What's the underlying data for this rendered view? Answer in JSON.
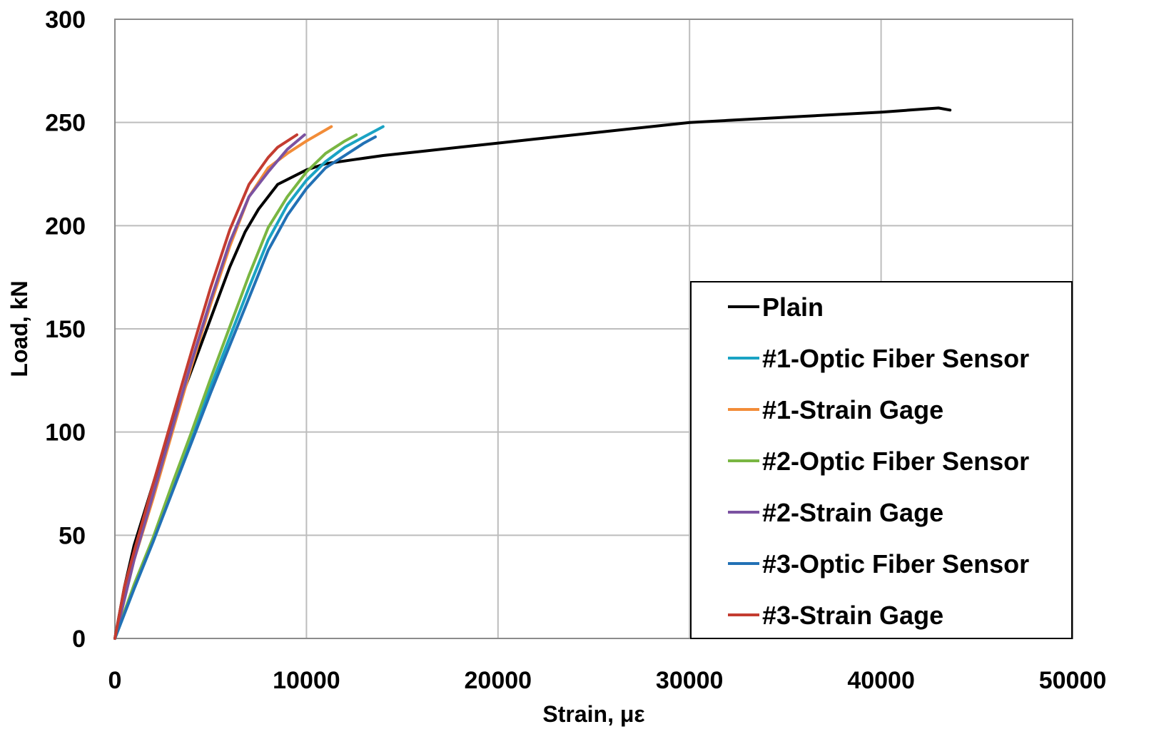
{
  "chart_data": {
    "type": "line",
    "title": "",
    "xlabel": "Strain, με",
    "ylabel": "Load, kN",
    "xlim": [
      0,
      50000
    ],
    "ylim": [
      0,
      300
    ],
    "xticks": [
      0,
      10000,
      20000,
      30000,
      40000,
      50000
    ],
    "yticks": [
      0,
      50,
      100,
      150,
      200,
      250,
      300
    ],
    "xtick_labels": [
      "0",
      "10000",
      "20000",
      "30000",
      "40000",
      "50000"
    ],
    "ytick_labels": [
      "0",
      "50",
      "100",
      "150",
      "200",
      "250",
      "300"
    ],
    "grid": true,
    "legend_position": "lower-right",
    "series": [
      {
        "name": "Plain",
        "color": "#000000",
        "x": [
          0,
          500,
          1000,
          2000,
          3000,
          4000,
          5000,
          6000,
          6800,
          7500,
          8500,
          10000,
          11000,
          12500,
          14000,
          16000,
          18000,
          20000,
          22000,
          24000,
          26000,
          28000,
          30000,
          32000,
          34000,
          36000,
          38000,
          40000,
          41500,
          43000,
          43600
        ],
        "y": [
          0,
          25,
          45,
          75,
          105,
          130,
          155,
          180,
          197,
          208,
          220,
          227,
          230,
          232,
          234,
          236,
          238,
          240,
          242,
          244,
          246,
          248,
          250,
          251,
          252,
          253,
          254,
          255,
          256,
          257,
          256
        ]
      },
      {
        "name": "#1-Optic Fiber Sensor",
        "color": "#1aa3c4",
        "x": [
          0,
          1000,
          2000,
          3000,
          4000,
          5000,
          6000,
          7000,
          8000,
          9000,
          10000,
          11000,
          12000,
          13000,
          14000
        ],
        "y": [
          0,
          24,
          47,
          72,
          97,
          122,
          146,
          170,
          193,
          210,
          222,
          231,
          238,
          243,
          248
        ]
      },
      {
        "name": "#1-Strain Gage",
        "color": "#f28c38",
        "x": [
          0,
          1000,
          2000,
          3000,
          4000,
          5000,
          6000,
          7000,
          8000,
          9000,
          10000,
          11300
        ],
        "y": [
          0,
          38,
          68,
          100,
          132,
          162,
          190,
          214,
          228,
          235,
          241,
          248
        ]
      },
      {
        "name": "#2-Optic Fiber Sensor",
        "color": "#79b642",
        "x": [
          0,
          1000,
          2000,
          3000,
          4000,
          5000,
          6000,
          7000,
          8000,
          9000,
          10000,
          11000,
          12000,
          12600
        ],
        "y": [
          0,
          26,
          49,
          75,
          100,
          126,
          151,
          176,
          199,
          214,
          226,
          235,
          241,
          244
        ]
      },
      {
        "name": "#2-Strain Gage",
        "color": "#7b52a1",
        "x": [
          0,
          1000,
          2000,
          3000,
          4000,
          5000,
          6000,
          7000,
          8000,
          9000,
          9900
        ],
        "y": [
          0,
          38,
          70,
          102,
          134,
          164,
          192,
          214,
          226,
          237,
          244
        ]
      },
      {
        "name": "#3-Optic Fiber Sensor",
        "color": "#2271b5",
        "x": [
          0,
          1000,
          2000,
          3000,
          4000,
          5000,
          6000,
          7000,
          8000,
          9000,
          10000,
          11000,
          12000,
          13000,
          13600
        ],
        "y": [
          0,
          24,
          47,
          71,
          95,
          119,
          142,
          165,
          188,
          205,
          218,
          228,
          234,
          240,
          243
        ]
      },
      {
        "name": "#3-Strain Gage",
        "color": "#c43c31",
        "x": [
          0,
          500,
          1000,
          2000,
          3000,
          4000,
          5000,
          6000,
          7000,
          8000,
          8500,
          9500
        ],
        "y": [
          0,
          25,
          42,
          75,
          107,
          139,
          170,
          198,
          220,
          233,
          238,
          244
        ]
      }
    ]
  }
}
